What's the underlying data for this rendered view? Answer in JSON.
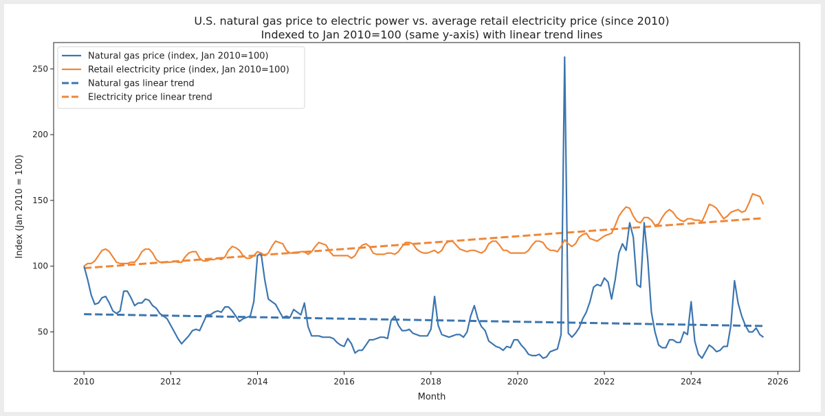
{
  "chart_data": {
    "type": "line",
    "title": "U.S. natural gas price to electric power vs. average retail electricity price (since 2010)",
    "subtitle": "Indexed to Jan 2010=100 (same y-axis) with linear trend lines",
    "xlabel": "Month",
    "ylabel": "Index (Jan 2010 = 100)",
    "x_start": "2010-01",
    "x_frequency": "monthly",
    "xlim": [
      2009.3,
      2026.5
    ],
    "ylim": [
      20,
      270
    ],
    "x_ticks": [
      "2010",
      "2012",
      "2014",
      "2016",
      "2018",
      "2020",
      "2022",
      "2024",
      "2026"
    ],
    "y_ticks": [
      "50",
      "100",
      "150",
      "200",
      "250"
    ],
    "grid": false,
    "legend_position": "top-left",
    "series": [
      {
        "name": "Natural gas price (index, Jan 2010=100)",
        "color": "#3b75af",
        "style": "solid",
        "values": [
          100,
          90,
          78,
          71,
          72,
          76,
          77,
          72,
          66,
          64,
          66,
          81,
          81,
          76,
          70,
          72,
          72,
          75,
          74,
          70,
          68,
          64,
          62,
          60,
          55,
          50,
          45,
          41,
          44,
          47,
          51,
          52,
          51,
          57,
          63,
          63,
          65,
          66,
          65,
          69,
          69,
          66,
          62,
          58,
          60,
          61,
          62,
          73,
          108,
          110,
          90,
          75,
          73,
          71,
          66,
          61,
          62,
          61,
          67,
          65,
          63,
          72,
          54,
          47,
          47,
          47,
          46,
          46,
          46,
          45,
          42,
          40,
          39,
          45,
          41,
          34,
          36,
          36,
          40,
          44,
          44,
          45,
          46,
          46,
          45,
          59,
          62,
          55,
          51,
          51,
          52,
          49,
          48,
          47,
          47,
          47,
          52,
          77,
          55,
          48,
          47,
          46,
          47,
          48,
          48,
          46,
          50,
          62,
          70,
          60,
          54,
          51,
          43,
          41,
          39,
          38,
          36,
          39,
          38,
          44,
          44,
          40,
          37,
          33,
          32,
          32,
          33,
          30,
          31,
          35,
          36,
          37,
          48,
          259,
          49,
          46,
          49,
          53,
          60,
          65,
          73,
          84,
          86,
          85,
          91,
          88,
          75,
          90,
          110,
          117,
          112,
          133,
          122,
          86,
          84,
          133,
          105,
          65,
          50,
          40,
          38,
          38,
          44,
          44,
          42,
          42,
          50,
          48,
          73,
          43,
          33,
          30,
          35,
          40,
          38,
          35,
          36,
          39,
          39,
          55,
          89,
          72,
          62,
          55,
          50,
          50,
          53,
          48,
          46
        ]
      },
      {
        "name": "Retail electricity price (index, Jan 2010=100)",
        "color": "#ef8636",
        "style": "solid",
        "values": [
          100,
          102,
          102,
          104,
          108,
          112,
          113,
          111,
          107,
          103,
          102,
          102,
          102,
          103,
          103,
          106,
          111,
          113,
          113,
          110,
          105,
          103,
          103,
          103,
          103,
          104,
          103,
          103,
          107,
          110,
          111,
          111,
          106,
          104,
          104,
          105,
          105,
          106,
          105,
          107,
          112,
          115,
          114,
          112,
          108,
          106,
          106,
          108,
          111,
          110,
          108,
          110,
          115,
          119,
          118,
          117,
          112,
          110,
          110,
          110,
          111,
          111,
          109,
          111,
          115,
          118,
          117,
          116,
          111,
          108,
          108,
          108,
          108,
          108,
          106,
          108,
          113,
          116,
          117,
          115,
          110,
          109,
          109,
          109,
          110,
          110,
          109,
          111,
          115,
          118,
          118,
          117,
          113,
          111,
          110,
          110,
          111,
          112,
          110,
          112,
          117,
          119,
          119,
          116,
          113,
          112,
          111,
          112,
          112,
          111,
          110,
          112,
          117,
          119,
          119,
          116,
          112,
          112,
          110,
          110,
          110,
          110,
          110,
          112,
          116,
          119,
          119,
          118,
          114,
          112,
          112,
          111,
          115,
          120,
          117,
          115,
          117,
          122,
          124,
          125,
          121,
          120,
          119,
          121,
          123,
          124,
          125,
          131,
          138,
          142,
          145,
          144,
          138,
          134,
          133,
          137,
          137,
          135,
          131,
          132,
          137,
          141,
          143,
          141,
          137,
          135,
          134,
          136,
          136,
          135,
          135,
          134,
          140,
          147,
          146,
          144,
          140,
          136,
          138,
          141,
          142,
          143,
          141,
          142,
          148,
          155,
          154,
          153,
          147
        ]
      },
      {
        "name": "Natural gas linear trend",
        "color": "#3b75af",
        "style": "dashed",
        "start_value": 63.5,
        "end_value": 54.5
      },
      {
        "name": "Electricity price linear trend",
        "color": "#ef8636",
        "style": "dashed",
        "start_value": 98.5,
        "end_value": 136.5
      }
    ]
  }
}
